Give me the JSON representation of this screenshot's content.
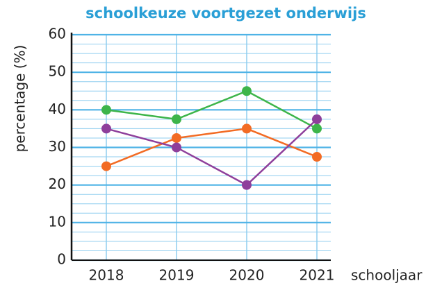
{
  "chart_data": {
    "type": "line",
    "title": "schoolkeuze voortgezet onderwijs",
    "y_label": "percentage (%)",
    "x_label": "schooljaar",
    "categories": [
      "2018",
      "2019",
      "2020",
      "2021"
    ],
    "series": [
      {
        "color": "#3db54a",
        "values": [
          40,
          37.5,
          45,
          35
        ]
      },
      {
        "color": "#f26b24",
        "values": [
          25,
          32.5,
          35,
          27.5
        ]
      },
      {
        "color": "#8e3f9b",
        "values": [
          35,
          30,
          20,
          37.5
        ]
      }
    ],
    "ylim": [
      0,
      60
    ],
    "yticks": [
      0,
      10,
      20,
      30,
      40,
      50,
      60
    ],
    "minor_yticks": [
      2.5,
      5,
      7.5,
      12.5,
      15,
      17.5,
      22.5,
      25,
      27.5,
      32.5,
      35,
      37.5,
      42.5,
      45,
      47.5,
      52.5,
      55,
      57.5
    ],
    "grid": true
  }
}
